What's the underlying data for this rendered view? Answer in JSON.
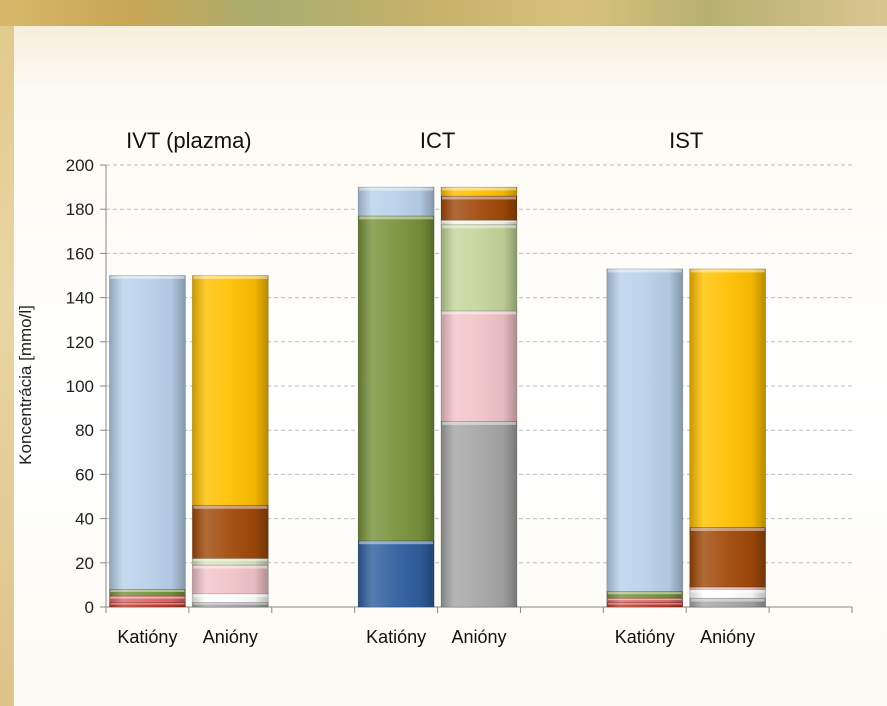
{
  "chart_data": {
    "type": "bar",
    "stacked": true,
    "ylabel": "Koncentrácia  [mmo/l]",
    "ylim": [
      0,
      200
    ],
    "yticks": [
      0,
      20,
      40,
      60,
      80,
      100,
      120,
      140,
      160,
      180,
      200
    ],
    "grid": true,
    "groups": [
      {
        "title": "IVT (plazma)",
        "bars": [
          {
            "label": "Katióny",
            "segments": [
              {
                "value": 2,
                "color": "#c0392b"
              },
              {
                "value": 3,
                "color": "#e06666"
              },
              {
                "value": 3,
                "color": "#77933c"
              },
              {
                "value": 142,
                "color": "#b9d1ea"
              }
            ]
          },
          {
            "label": "Anióny",
            "segments": [
              {
                "value": 2,
                "color": "#a6a6a6"
              },
              {
                "value": 4,
                "color": "#ffffff"
              },
              {
                "value": 13,
                "color": "#f2c4c8"
              },
              {
                "value": 3,
                "color": "#d7e4bd"
              },
              {
                "value": 24,
                "color": "#a0490a"
              },
              {
                "value": 104,
                "color": "#ffc000"
              }
            ]
          }
        ]
      },
      {
        "title": "ICT",
        "bars": [
          {
            "label": "Katióny",
            "segments": [
              {
                "value": 30,
                "color": "#2e5f9e"
              },
              {
                "value": 147,
                "color": "#77933c"
              },
              {
                "value": 13,
                "color": "#b9d1ea"
              }
            ]
          },
          {
            "label": "Anióny",
            "segments": [
              {
                "value": 84,
                "color": "#a6a6a6"
              },
              {
                "value": 50,
                "color": "#f2c4c8"
              },
              {
                "value": 39,
                "color": "#c3d69b"
              },
              {
                "value": 2,
                "color": "#f7f5e6"
              },
              {
                "value": 11,
                "color": "#a0490a"
              },
              {
                "value": 4,
                "color": "#ffc000"
              }
            ]
          }
        ]
      },
      {
        "title": "IST",
        "bars": [
          {
            "label": "Katióny",
            "segments": [
              {
                "value": 2,
                "color": "#c0392b"
              },
              {
                "value": 2,
                "color": "#e06666"
              },
              {
                "value": 3,
                "color": "#77933c"
              },
              {
                "value": 146,
                "color": "#b9d1ea"
              }
            ]
          },
          {
            "label": "Anióny",
            "segments": [
              {
                "value": 4,
                "color": "#a6a6a6"
              },
              {
                "value": 4,
                "color": "#ffffff"
              },
              {
                "value": 1,
                "color": "#f2c4c8"
              },
              {
                "value": 27,
                "color": "#a0490a"
              },
              {
                "value": 117,
                "color": "#ffc000"
              }
            ]
          }
        ]
      }
    ]
  }
}
